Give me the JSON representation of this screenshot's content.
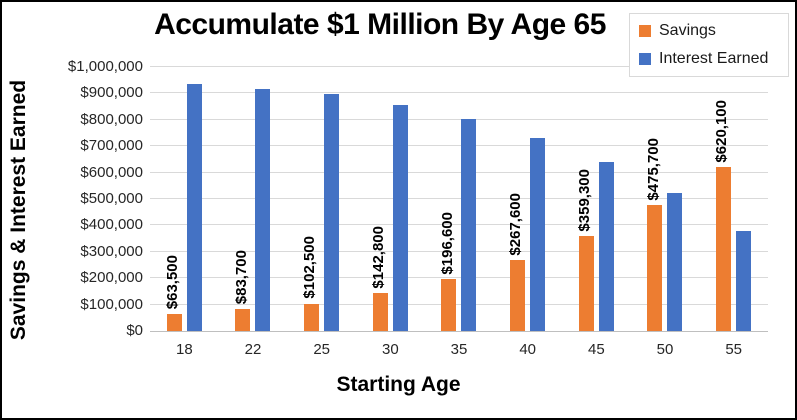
{
  "chart_data": {
    "type": "bar",
    "title": "Accumulate $1 Million By Age 65",
    "xlabel": "Starting Age",
    "ylabel": "Savings & Interest Earned",
    "categories": [
      "18",
      "22",
      "25",
      "30",
      "35",
      "40",
      "45",
      "50",
      "55"
    ],
    "series": [
      {
        "name": "Savings",
        "color": "#ED7D31",
        "values": [
          63500,
          83700,
          102500,
          142800,
          196600,
          267600,
          359300,
          475700,
          620100
        ],
        "data_labels": [
          "$63,500",
          "$83,700",
          "$102,500",
          "$142,800",
          "$196,600",
          "$267,600",
          "$359,300",
          "$475,700",
          "$620,100"
        ]
      },
      {
        "name": "Interest Earned",
        "color": "#4472C4",
        "values": [
          936500,
          916300,
          897500,
          857200,
          803400,
          732400,
          640700,
          524300,
          379900
        ]
      }
    ],
    "ylim": [
      0,
      1000000
    ],
    "ytick_step": 100000,
    "ytick_labels": [
      "$0",
      "$100,000",
      "$200,000",
      "$300,000",
      "$400,000",
      "$500,000",
      "$600,000",
      "$700,000",
      "$800,000",
      "$900,000",
      "$1,000,000"
    ],
    "legend_position": "top-right",
    "grid": true,
    "colors": {
      "gridline": "#D9D9D9",
      "axis_line": "#BFBFBF",
      "background": "#FFFFFF",
      "border": "#000000"
    }
  }
}
